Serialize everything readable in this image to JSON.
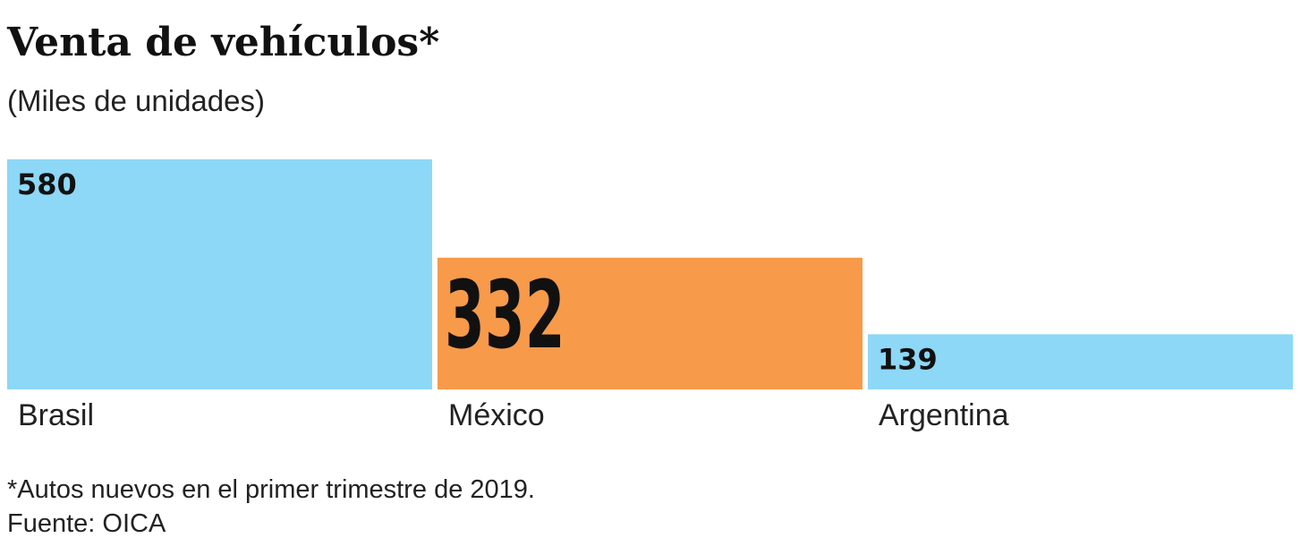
{
  "chart_data": {
    "type": "bar",
    "title": "Venta de vehículos*",
    "subtitle": "(Miles de unidades)",
    "categories": [
      "Brasil",
      "México",
      "Argentina"
    ],
    "values": [
      580,
      332,
      139
    ],
    "colors": [
      "#8dd7f7",
      "#f79a4a",
      "#8dd7f7"
    ],
    "footnote": "*Autos nuevos en el primer trimestre de 2019.",
    "source": "Fuente: OICA"
  }
}
